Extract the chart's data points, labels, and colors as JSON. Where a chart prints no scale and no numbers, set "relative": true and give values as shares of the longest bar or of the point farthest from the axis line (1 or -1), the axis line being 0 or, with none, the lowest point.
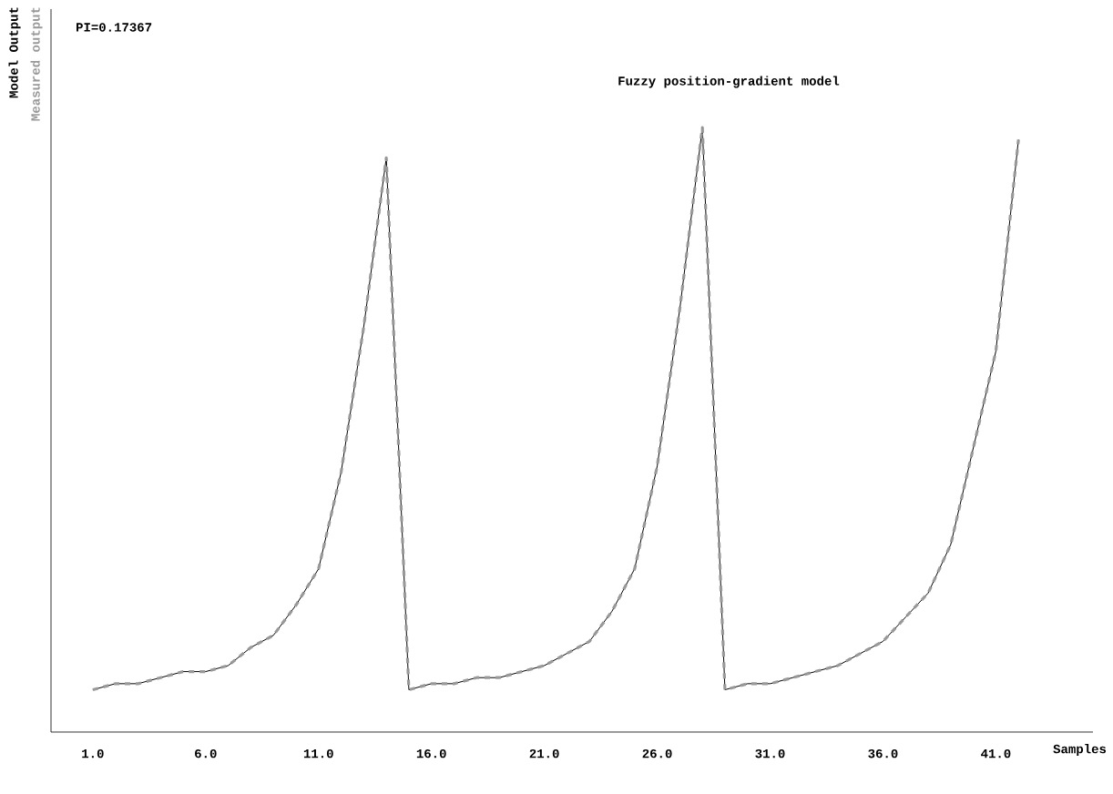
{
  "chart_data": {
    "type": "line",
    "title": "Fuzzy position-gradient model",
    "xlabel": "Samples",
    "annotations": [
      "PI=0.17367"
    ],
    "relative": true,
    "x": [
      1,
      2,
      3,
      4,
      5,
      6,
      7,
      8,
      9,
      10,
      11,
      12,
      13,
      14,
      15,
      16,
      17,
      18,
      19,
      20,
      21,
      22,
      23,
      24,
      25,
      26,
      27,
      28,
      29,
      30,
      31,
      32,
      33,
      34,
      35,
      36,
      37,
      38,
      39,
      40,
      41,
      42
    ],
    "xlim": [
      -0.85,
      45.3
    ],
    "xticks": [
      {
        "value": 1,
        "label": "1.0"
      },
      {
        "value": 6,
        "label": "6.0"
      },
      {
        "value": 11,
        "label": "11.0"
      },
      {
        "value": 16,
        "label": "16.0"
      },
      {
        "value": 21,
        "label": "21.0"
      },
      {
        "value": 26,
        "label": "26.0"
      },
      {
        "value": 31,
        "label": "31.0"
      },
      {
        "value": 36,
        "label": "36.0"
      },
      {
        "value": 41,
        "label": "41.0"
      }
    ],
    "tick_labels": "x",
    "grid": false,
    "legend": false,
    "marker": "none",
    "series": [
      {
        "name": "Model Output",
        "color": "#000000",
        "line_style": "solid",
        "values": [
          0.07,
          0.08,
          0.08,
          0.09,
          0.1,
          0.1,
          0.11,
          0.14,
          0.16,
          0.21,
          0.27,
          0.43,
          0.67,
          0.95,
          0.07,
          0.08,
          0.08,
          0.09,
          0.09,
          0.1,
          0.11,
          0.13,
          0.15,
          0.2,
          0.27,
          0.44,
          0.7,
          1,
          0.07,
          0.08,
          0.08,
          0.09,
          0.1,
          0.11,
          0.13,
          0.15,
          0.19,
          0.23,
          0.31,
          0.47,
          0.63,
          0.98
        ]
      },
      {
        "name": "Measured output",
        "color": "#999999",
        "line_style": "dashed",
        "values": [
          0.07,
          0.08,
          0.08,
          0.09,
          0.1,
          0.1,
          0.11,
          0.14,
          0.16,
          0.21,
          0.27,
          0.43,
          0.67,
          0.95,
          0.07,
          0.08,
          0.08,
          0.09,
          0.09,
          0.1,
          0.11,
          0.13,
          0.15,
          0.2,
          0.27,
          0.44,
          0.7,
          1,
          0.07,
          0.08,
          0.08,
          0.09,
          0.1,
          0.11,
          0.13,
          0.15,
          0.19,
          0.23,
          0.31,
          0.47,
          0.63,
          0.98
        ]
      }
    ]
  }
}
